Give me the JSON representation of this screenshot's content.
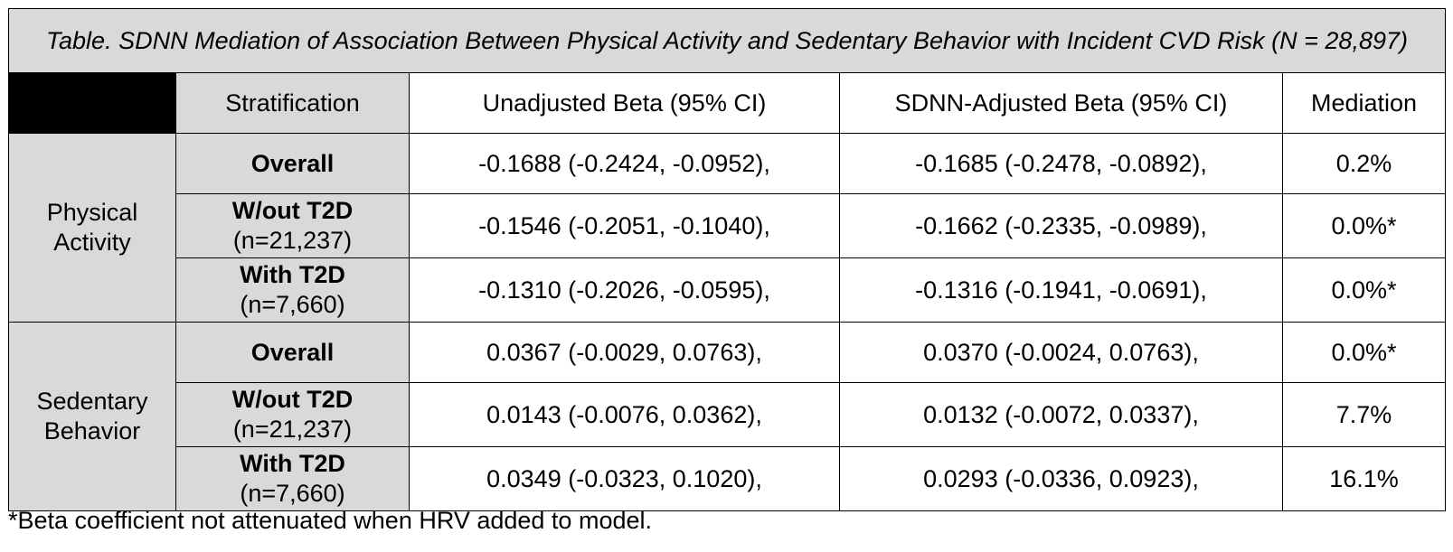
{
  "title": "Table. SDNN Mediation of Association Between Physical Activity and Sedentary Behavior with Incident CVD Risk (N = 28,897)",
  "headers": {
    "corner": "",
    "stratification": "Stratification",
    "unadjusted": "Unadjusted Beta (95% CI)",
    "adjusted": "SDNN-Adjusted Beta (95% CI)",
    "mediation": "Mediation"
  },
  "groups": [
    {
      "label": "Physical Activity",
      "rows": [
        {
          "strat": "Overall",
          "n": "",
          "unadjusted": "-0.1688 (-0.2424, -0.0952),",
          "adjusted": "-0.1685 (-0.2478, -0.0892),",
          "mediation": "0.2%"
        },
        {
          "strat": "W/out T2D",
          "n": "(n=21,237)",
          "unadjusted": "-0.1546 (-0.2051, -0.1040),",
          "adjusted": "-0.1662 (-0.2335, -0.0989),",
          "mediation": "0.0%*"
        },
        {
          "strat": "With T2D",
          "n": "(n=7,660)",
          "unadjusted": "-0.1310 (-0.2026, -0.0595),",
          "adjusted": "-0.1316 (-0.1941, -0.0691),",
          "mediation": "0.0%*"
        }
      ]
    },
    {
      "label": "Sedentary Behavior",
      "rows": [
        {
          "strat": "Overall",
          "n": "",
          "unadjusted": "0.0367 (-0.0029, 0.0763),",
          "adjusted": "0.0370 (-0.0024, 0.0763),",
          "mediation": "0.0%*"
        },
        {
          "strat": "W/out T2D",
          "n": "(n=21,237)",
          "unadjusted": "0.0143 (-0.0076, 0.0362),",
          "adjusted": "0.0132 (-0.0072, 0.0337),",
          "mediation": "7.7%"
        },
        {
          "strat": "With T2D",
          "n": "(n=7,660)",
          "unadjusted": "0.0349 (-0.0323, 0.1020),",
          "adjusted": "0.0293 (-0.0336, 0.0923),",
          "mediation": "16.1%"
        }
      ]
    }
  ],
  "footnote": "*Beta coefficient not attenuated when HRV added to model."
}
